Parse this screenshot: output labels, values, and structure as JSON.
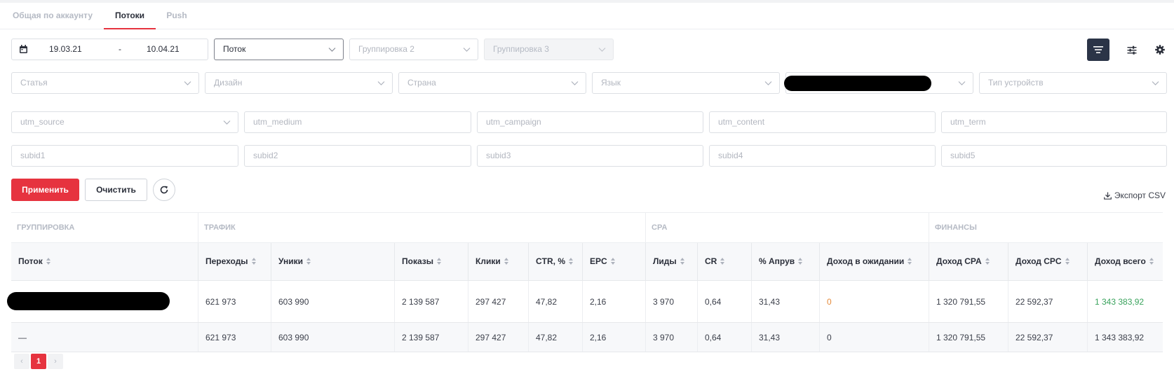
{
  "tabs": [
    {
      "label": "Общая по аккаунту",
      "active": false
    },
    {
      "label": "Потоки",
      "active": true
    },
    {
      "label": "Push",
      "active": false
    }
  ],
  "filters": {
    "date_from": "19.03.21",
    "date_sep": "-",
    "date_to": "10.04.21",
    "grouping1": "Поток",
    "grouping2_placeholder": "Группировка 2",
    "grouping3_placeholder": "Группировка 3",
    "article": "Статья",
    "design": "Дизайн",
    "country": "Страна",
    "language": "Язык",
    "device_type": "Тип устройств",
    "utm_source": "utm_source",
    "utm_medium": "utm_medium",
    "utm_campaign": "utm_campaign",
    "utm_content": "utm_content",
    "utm_term": "utm_term",
    "subid1": "subid1",
    "subid2": "subid2",
    "subid3": "subid3",
    "subid4": "subid4",
    "subid5": "subid5"
  },
  "actions": {
    "apply": "Применить",
    "clear": "Очистить",
    "export": "Экспорт CSV"
  },
  "table": {
    "groups": [
      "ГРУППИРОВКА",
      "ТРАФИК",
      "CPA",
      "ФИНАНСЫ"
    ],
    "columns": [
      "Поток",
      "Переходы",
      "Уники",
      "Показы",
      "Клики",
      "CTR, %",
      "EPC",
      "Лиды",
      "CR",
      "% Апрув",
      "Доход в ожидании",
      "Доход CPA",
      "Доход CPC",
      "Доход всего"
    ],
    "rows": [
      [
        "",
        "621 973",
        "603 990",
        "2 139 587",
        "297 427",
        "47,82",
        "2,16",
        "3 970",
        "0,64",
        "31,43",
        "0",
        "1 320 791,55",
        "22 592,37",
        "1 343 383,92"
      ],
      [
        "—",
        "621 973",
        "603 990",
        "2 139 587",
        "297 427",
        "47,82",
        "2,16",
        "3 970",
        "0,64",
        "31,43",
        "0",
        "1 320 791,55",
        "22 592,37",
        "1 343 383,92"
      ]
    ]
  },
  "pagination": {
    "prev": "‹",
    "current": "1",
    "next": "›"
  },
  "colors": {
    "accent": "#e6333f",
    "positive": "#3aa35d",
    "pending": "#e58a3a",
    "dark_button": "#2b3447"
  }
}
